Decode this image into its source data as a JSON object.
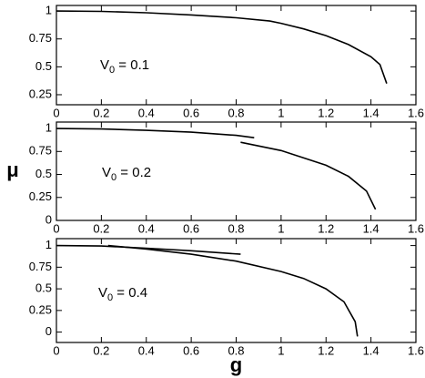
{
  "chart_data": [
    {
      "type": "line",
      "xlim": [
        0,
        1.6
      ],
      "ylim": [
        0.16,
        1.05
      ],
      "xticks": [
        0,
        0.2,
        0.4,
        0.6,
        0.8,
        1,
        1.2,
        1.4,
        1.6
      ],
      "yticks": [
        0.25,
        0.5,
        0.75,
        1
      ],
      "annotation": {
        "base": "V",
        "subscript": "0",
        "rest": " = 0.1"
      },
      "series": [
        {
          "color": "#000000",
          "x": [
            0,
            0.2,
            0.4,
            0.6,
            0.8,
            0.95,
            1.0,
            1.1,
            1.2,
            1.3,
            1.4,
            1.44,
            1.47
          ],
          "values": [
            1.0,
            0.997,
            0.985,
            0.965,
            0.94,
            0.91,
            0.89,
            0.84,
            0.78,
            0.7,
            0.59,
            0.52,
            0.35
          ]
        }
      ]
    },
    {
      "type": "line",
      "xlim": [
        0,
        1.6
      ],
      "ylim": [
        0,
        1.07
      ],
      "ylabel": "μ",
      "xticks": [
        0,
        0.2,
        0.4,
        0.6,
        0.8,
        1,
        1.2,
        1.4,
        1.6
      ],
      "yticks": [
        0,
        0.25,
        0.5,
        0.75,
        1
      ],
      "annotation": {
        "base": "V",
        "subscript": "0",
        "rest": " = 0.2"
      },
      "series": [
        {
          "color": "#000000",
          "x": [
            0,
            0.2,
            0.4,
            0.6,
            0.8,
            0.88
          ],
          "values": [
            1.0,
            0.995,
            0.98,
            0.96,
            0.925,
            0.9
          ]
        },
        {
          "color": "#000000",
          "x": [
            0.82,
            1.0,
            1.2,
            1.3,
            1.38,
            1.42
          ],
          "values": [
            0.85,
            0.76,
            0.6,
            0.48,
            0.32,
            0.12
          ]
        }
      ]
    },
    {
      "type": "line",
      "xlim": [
        0,
        1.6
      ],
      "ylim": [
        -0.12,
        1.08
      ],
      "xlabel": "g",
      "xticks": [
        0,
        0.2,
        0.4,
        0.6,
        0.8,
        1,
        1.2,
        1.4,
        1.6
      ],
      "yticks": [
        0,
        0.25,
        0.5,
        0.75,
        1
      ],
      "annotation": {
        "base": "V",
        "subscript": "0",
        "rest": " = 0.4"
      },
      "series": [
        {
          "color": "#000000",
          "x": [
            0,
            0.2,
            0.4,
            0.6,
            0.82
          ],
          "values": [
            1.0,
            0.995,
            0.97,
            0.94,
            0.9
          ]
        },
        {
          "color": "#000000",
          "x": [
            0.23,
            0.4,
            0.6,
            0.8,
            1.0,
            1.1,
            1.2,
            1.28,
            1.33,
            1.34
          ],
          "values": [
            1.0,
            0.96,
            0.9,
            0.82,
            0.7,
            0.62,
            0.5,
            0.35,
            0.12,
            -0.05
          ]
        }
      ]
    }
  ]
}
